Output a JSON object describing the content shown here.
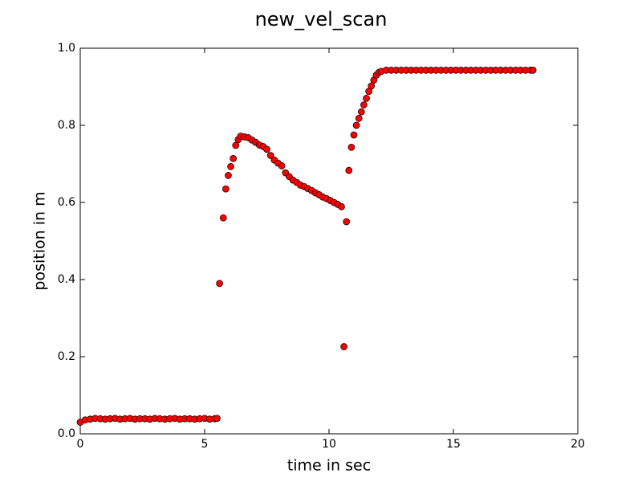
{
  "chart_data": {
    "type": "scatter",
    "title": "new_vel_scan",
    "x_label": "time in sec",
    "y_label": "position in m",
    "series": [
      {
        "color": "#ff0000",
        "x": [
          0,
          0.2,
          0.4,
          0.6,
          0.8,
          1,
          1.2,
          1.4,
          1.6,
          1.8,
          2,
          2.2,
          2.4,
          2.6,
          2.8,
          3,
          3.2,
          3.4,
          3.6,
          3.8,
          4,
          4.2,
          4.4,
          4.6,
          4.8,
          5,
          5.2,
          5.4,
          5.5,
          5.6,
          5.75,
          5.85,
          5.95,
          6.05,
          6.15,
          6.25,
          6.35,
          6.45,
          6.6,
          6.75,
          6.9,
          7.05,
          7.2,
          7.35,
          7.5,
          7.65,
          7.8,
          7.95,
          8.1,
          8.25,
          8.4,
          8.55,
          8.7,
          8.85,
          9,
          9.15,
          9.3,
          9.45,
          9.6,
          9.75,
          9.9,
          10.05,
          10.2,
          10.35,
          10.5,
          10.6,
          10.7,
          10.8,
          10.9,
          11,
          11.1,
          11.2,
          11.3,
          11.4,
          11.5,
          11.6,
          11.7,
          11.8,
          11.9,
          12,
          12.1,
          12.3,
          12.5,
          12.7,
          12.9,
          13.1,
          13.3,
          13.5,
          13.7,
          13.9,
          14.1,
          14.3,
          14.5,
          14.7,
          14.9,
          15.1,
          15.3,
          15.5,
          15.7,
          15.9,
          16.1,
          16.3,
          16.5,
          16.7,
          16.9,
          17.1,
          17.3,
          17.5,
          17.7,
          17.9,
          18.1,
          18.2
        ],
        "values": [
          0.03,
          0.036,
          0.038,
          0.04,
          0.039,
          0.038,
          0.039,
          0.04,
          0.038,
          0.039,
          0.04,
          0.038,
          0.039,
          0.039,
          0.038,
          0.04,
          0.039,
          0.038,
          0.039,
          0.04,
          0.038,
          0.039,
          0.039,
          0.038,
          0.039,
          0.04,
          0.038,
          0.039,
          0.04,
          0.39,
          0.56,
          0.635,
          0.67,
          0.693,
          0.714,
          0.748,
          0.763,
          0.772,
          0.77,
          0.768,
          0.762,
          0.756,
          0.749,
          0.745,
          0.738,
          0.722,
          0.71,
          0.702,
          0.695,
          0.677,
          0.667,
          0.658,
          0.652,
          0.645,
          0.641,
          0.636,
          0.631,
          0.625,
          0.62,
          0.614,
          0.61,
          0.605,
          0.6,
          0.595,
          0.589,
          0.226,
          0.55,
          0.683,
          0.743,
          0.775,
          0.8,
          0.818,
          0.835,
          0.853,
          0.87,
          0.888,
          0.902,
          0.917,
          0.93,
          0.937,
          0.94,
          0.943,
          0.943,
          0.943,
          0.943,
          0.943,
          0.943,
          0.943,
          0.943,
          0.943,
          0.943,
          0.943,
          0.943,
          0.943,
          0.943,
          0.943,
          0.943,
          0.943,
          0.943,
          0.943,
          0.943,
          0.943,
          0.943,
          0.943,
          0.943,
          0.943,
          0.943,
          0.943,
          0.943,
          0.943,
          0.943,
          0.943
        ]
      }
    ],
    "xlim": [
      0,
      20
    ],
    "xticks": [
      0,
      5,
      10,
      15,
      20
    ],
    "ylim": [
      0,
      1
    ],
    "yticks": [
      {
        "value": 0,
        "label": "0.0"
      },
      0.2,
      0.4,
      0.6,
      0.8,
      {
        "value": 1,
        "label": "1.0"
      }
    ],
    "grid": false
  }
}
